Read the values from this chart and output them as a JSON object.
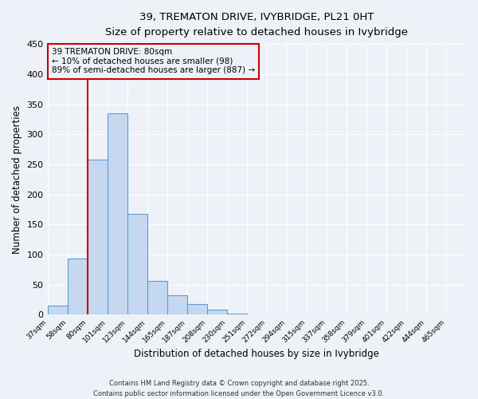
{
  "title": "39, TREMATON DRIVE, IVYBRIDGE, PL21 0HT",
  "subtitle": "Size of property relative to detached houses in Ivybridge",
  "xlabel": "Distribution of detached houses by size in Ivybridge",
  "ylabel": "Number of detached properties",
  "bin_labels": [
    "37sqm",
    "58sqm",
    "80sqm",
    "101sqm",
    "123sqm",
    "144sqm",
    "165sqm",
    "187sqm",
    "208sqm",
    "230sqm",
    "251sqm",
    "272sqm",
    "294sqm",
    "315sqm",
    "337sqm",
    "358sqm",
    "379sqm",
    "401sqm",
    "422sqm",
    "444sqm",
    "465sqm"
  ],
  "bar_heights": [
    15,
    93,
    258,
    335,
    168,
    57,
    32,
    18,
    8,
    2,
    1,
    1,
    0,
    0,
    0,
    0,
    0,
    0,
    0,
    0,
    1
  ],
  "bar_color": "#c5d8f0",
  "bar_edge_color": "#5a9fd4",
  "vline_x_index": 2,
  "vline_color": "#cc0000",
  "annotation_title": "39 TREMATON DRIVE: 80sqm",
  "annotation_line1": "← 10% of detached houses are smaller (98)",
  "annotation_line2": "89% of semi-detached houses are larger (887) →",
  "annotation_box_color": "#cc0000",
  "ylim": [
    0,
    450
  ],
  "yticks": [
    0,
    50,
    100,
    150,
    200,
    250,
    300,
    350,
    400,
    450
  ],
  "footnote1": "Contains HM Land Registry data © Crown copyright and database right 2025.",
  "footnote2": "Contains public sector information licensed under the Open Government Licence v3.0.",
  "background_color": "#eef2f8",
  "grid_color": "#ffffff"
}
